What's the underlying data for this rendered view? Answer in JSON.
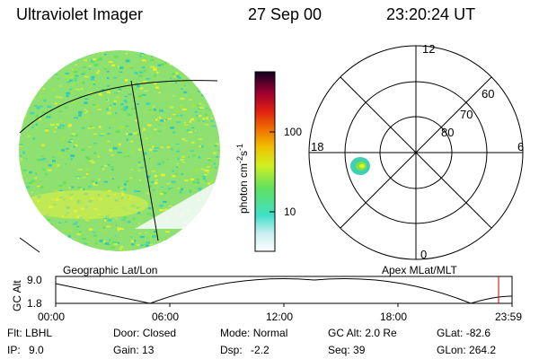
{
  "header": {
    "instrument": "Ultraviolet Imager",
    "date": "27 Sep 00",
    "time": "23:20:24 UT"
  },
  "left_panel": {
    "caption": "Geographic Lat/Lon"
  },
  "right_panel": {
    "caption": "Apex MLat/MLT",
    "mlt_labels": {
      "top": "12",
      "left": "18",
      "right": "6",
      "bottom": "0"
    },
    "lat_labels": [
      "60",
      "70",
      "80"
    ]
  },
  "colorbar": {
    "unit_text": "photon cm",
    "unit_sup1": "-2",
    "unit_mid": "s",
    "unit_sup2": "-1",
    "ticks": [
      "100",
      "10"
    ]
  },
  "timeline": {
    "axis_label": "GC Alt",
    "y_ticks": [
      "9.0",
      "1.8"
    ],
    "x_ticks": [
      "00:00",
      "06:00",
      "12:00",
      "18:00",
      "23:59"
    ]
  },
  "status": {
    "flt_label": "Flt:",
    "flt_value": "LBHL",
    "ip_label": "IP:",
    "ip_value": "9.0",
    "door_label": "Door:",
    "door_value": "Closed",
    "gain_label": "Gain:",
    "gain_value": "13",
    "mode_label": "Mode:",
    "mode_value": "Normal",
    "dsp_label": "Dsp:",
    "dsp_value": "-2.2",
    "gcalt_label": "GC Alt:",
    "gcalt_value": "2.0 Re",
    "seq_label": "Seq:",
    "seq_value": "39",
    "glat_label": "GLat:",
    "glat_value": "-82.6",
    "glon_label": "GLon:",
    "glon_value": "264.2"
  },
  "colors": {
    "accent_marker": "#cc0000",
    "colorscale": [
      "#ffffff",
      "#d0f0f0",
      "#40e0c0",
      "#80e040",
      "#f0f020",
      "#f0a000",
      "#f04000",
      "#c00010",
      "#600040",
      "#000040"
    ]
  }
}
